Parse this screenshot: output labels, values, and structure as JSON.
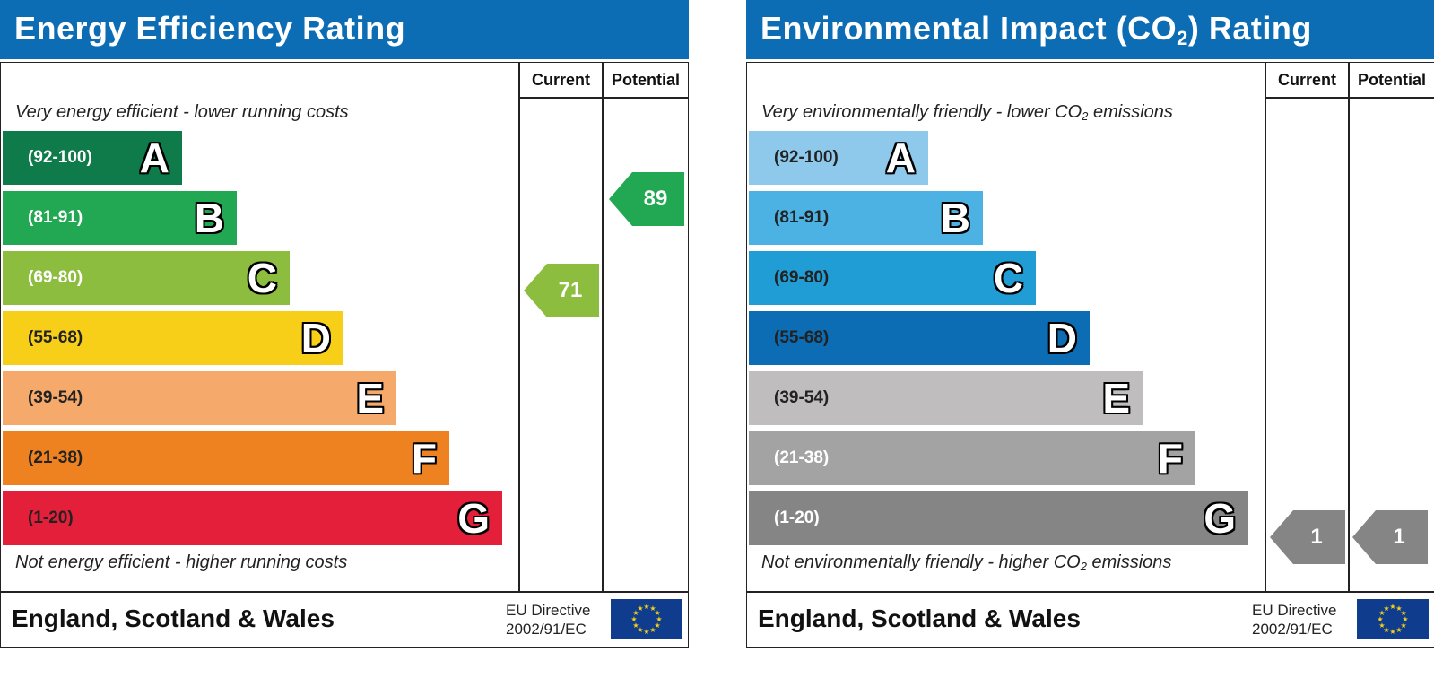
{
  "energy": {
    "title": "Energy Efficiency Rating",
    "col_current": "Current",
    "col_potential": "Potential",
    "top_caption": "Very energy efficient - lower running costs",
    "bottom_caption": "Not energy efficient - higher running costs",
    "bands": [
      {
        "range": "(92-100)",
        "letter": "A",
        "color": "#0f7a4a"
      },
      {
        "range": "(81-91)",
        "letter": "B",
        "color": "#22a852"
      },
      {
        "range": "(69-80)",
        "letter": "C",
        "color": "#8cbd3f"
      },
      {
        "range": "(55-68)",
        "letter": "D",
        "color": "#f7cf18"
      },
      {
        "range": "(39-54)",
        "letter": "E",
        "color": "#f5aa6c"
      },
      {
        "range": "(21-38)",
        "letter": "F",
        "color": "#ee8120"
      },
      {
        "range": "(1-20)",
        "letter": "G",
        "color": "#e41f3a"
      }
    ],
    "current": {
      "value": "71",
      "band": "C",
      "color": "#8cbd3f"
    },
    "potential": {
      "value": "89",
      "band": "B",
      "color": "#22a852"
    },
    "footer": "England, Scotland & Wales",
    "eu_line1": "EU Directive",
    "eu_line2": "2002/91/EC"
  },
  "environment": {
    "title_pre": "Environmental Impact (CO",
    "title_sub": "2",
    "title_post": ") Rating",
    "col_current": "Current",
    "col_potential": "Potential",
    "top_caption_pre": "Very environmentally friendly - lower CO",
    "top_caption_sub": "2",
    "top_caption_post": " emissions",
    "bottom_caption_pre": "Not environmentally friendly - higher CO",
    "bottom_caption_sub": "2",
    "bottom_caption_post": " emissions",
    "bands": [
      {
        "range": "(92-100)",
        "letter": "A",
        "color": "#8ec9ec"
      },
      {
        "range": "(81-91)",
        "letter": "B",
        "color": "#4cb2e4"
      },
      {
        "range": "(69-80)",
        "letter": "C",
        "color": "#219dd6"
      },
      {
        "range": "(55-68)",
        "letter": "D",
        "color": "#0c6cb4"
      },
      {
        "range": "(39-54)",
        "letter": "E",
        "color": "#bfbdbd"
      },
      {
        "range": "(21-38)",
        "letter": "F",
        "color": "#a3a3a3"
      },
      {
        "range": "(1-20)",
        "letter": "G",
        "color": "#858585"
      }
    ],
    "current": {
      "value": "1",
      "band": "G",
      "color": "#858585"
    },
    "potential": {
      "value": "1",
      "band": "G",
      "color": "#858585"
    },
    "footer": "England, Scotland & Wales",
    "eu_line1": "EU Directive",
    "eu_line2": "2002/91/EC"
  }
}
